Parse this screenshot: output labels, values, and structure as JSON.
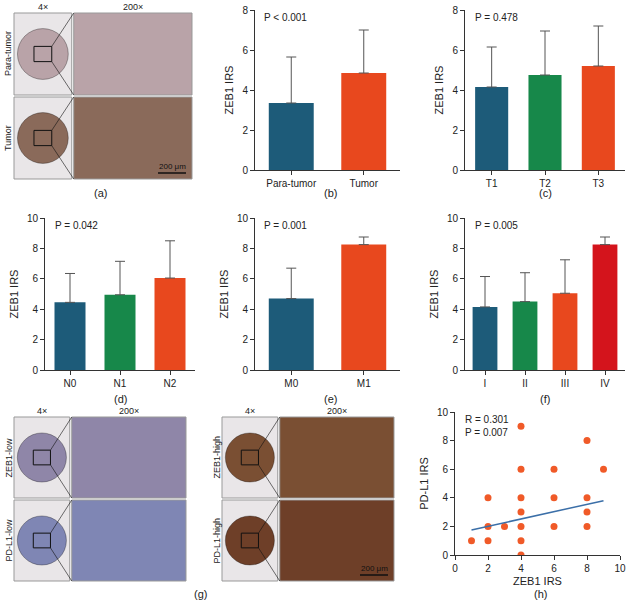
{
  "chart_data": [
    {
      "label": "(b)",
      "type": "bar",
      "categories": [
        "Para-tumor",
        "Tumor"
      ],
      "values": [
        3.35,
        4.85
      ],
      "errors": [
        2.3,
        2.15
      ],
      "colors": [
        "#1d5b79",
        "#e8481e"
      ],
      "y_label": "ZEB1 IRS",
      "annotations": [
        "P < 0.001"
      ],
      "ylim": [
        0,
        8
      ],
      "yticks": [
        0,
        2,
        4,
        6,
        8
      ]
    },
    {
      "label": "(c)",
      "type": "bar",
      "categories": [
        "T1",
        "T2",
        "T3"
      ],
      "values": [
        4.15,
        4.75,
        5.2
      ],
      "errors": [
        2.0,
        2.2,
        2.0
      ],
      "colors": [
        "#1d5b79",
        "#17884a",
        "#e8481e"
      ],
      "y_label": "ZEB1 IRS",
      "annotations": [
        "P = 0.478"
      ],
      "ylim": [
        0,
        8
      ],
      "yticks": [
        0,
        2,
        4,
        6,
        8
      ]
    },
    {
      "label": "(d)",
      "type": "bar",
      "categories": [
        "N0",
        "N1",
        "N2"
      ],
      "values": [
        4.45,
        4.95,
        6.05
      ],
      "errors": [
        1.9,
        2.2,
        2.45
      ],
      "colors": [
        "#1d5b79",
        "#17884a",
        "#e8481e"
      ],
      "y_label": "ZEB1 IRS",
      "annotations": [
        "P = 0.042"
      ],
      "ylim": [
        0,
        10
      ],
      "yticks": [
        0,
        2,
        4,
        6,
        8,
        10
      ]
    },
    {
      "label": "(e)",
      "type": "bar",
      "categories": [
        "M0",
        "M1"
      ],
      "values": [
        4.7,
        8.25
      ],
      "errors": [
        2.0,
        0.5
      ],
      "colors": [
        "#1d5b79",
        "#e8481e"
      ],
      "y_label": "ZEB1 IRS",
      "annotations": [
        "P = 0.001"
      ],
      "ylim": [
        0,
        10
      ],
      "yticks": [
        0,
        2,
        4,
        6,
        8,
        10
      ]
    },
    {
      "label": "(f)",
      "type": "bar",
      "categories": [
        "I",
        "II",
        "III",
        "IV"
      ],
      "values": [
        4.15,
        4.5,
        5.05,
        8.25
      ],
      "errors": [
        2.0,
        1.9,
        2.2,
        0.5
      ],
      "colors": [
        "#1d5b79",
        "#17884a",
        "#e8481e",
        "#d4141c"
      ],
      "y_label": "ZEB1 IRS",
      "annotations": [
        "P = 0.005"
      ],
      "ylim": [
        0,
        10
      ],
      "yticks": [
        0,
        2,
        4,
        6,
        8,
        10
      ]
    },
    {
      "label": "(h)",
      "type": "scatter",
      "x_label": "ZEB1 IRS",
      "y_label": "PD-L1 IRS",
      "annotations": [
        "R = 0.301",
        "P = 0.007"
      ],
      "x": [
        1,
        2,
        2,
        2,
        3,
        4,
        4,
        4,
        4,
        4,
        4,
        4,
        6,
        6,
        6,
        8,
        8,
        8,
        8,
        9
      ],
      "values": [
        1,
        1,
        2,
        4,
        2,
        0,
        1,
        2,
        3,
        4,
        6,
        9,
        2,
        4,
        6,
        2,
        3,
        4,
        8,
        6
      ],
      "color": "#f05a28",
      "marker": "circle",
      "fit": {
        "x": [
          1,
          9
        ],
        "values": [
          1.75,
          3.8
        ],
        "color": "#3b6fa8"
      },
      "xlim": [
        0,
        10
      ],
      "xticks": [
        0,
        2,
        4,
        6,
        8,
        10
      ],
      "ylim": [
        0,
        10
      ],
      "yticks": [
        0,
        2,
        4,
        6,
        8,
        10
      ]
    }
  ],
  "image_panels": [
    {
      "label": "(a)",
      "groups": [
        {
          "columns": [
            "4×",
            "200×"
          ],
          "rows": [
            {
              "name": "Para-tumor",
              "color": "#b9a3a8"
            },
            {
              "name": "Tumor",
              "color": "#8a6a5a"
            }
          ],
          "scale_bar": "200 μm"
        }
      ]
    },
    {
      "label": "(g)",
      "groups": [
        {
          "columns": [
            "4×",
            "200×"
          ],
          "rows": [
            {
              "name": "ZEB1-low",
              "color": "#8f86a8"
            },
            {
              "name": "PD-L1-low",
              "color": "#7f86b4"
            }
          ]
        },
        {
          "columns": [
            "4×",
            "200×"
          ],
          "rows": [
            {
              "name": "ZEB1-high",
              "color": "#7a4f33"
            },
            {
              "name": "PD-L1-high",
              "color": "#6e3f28"
            }
          ],
          "scale_bar": "200 μm"
        }
      ]
    }
  ]
}
